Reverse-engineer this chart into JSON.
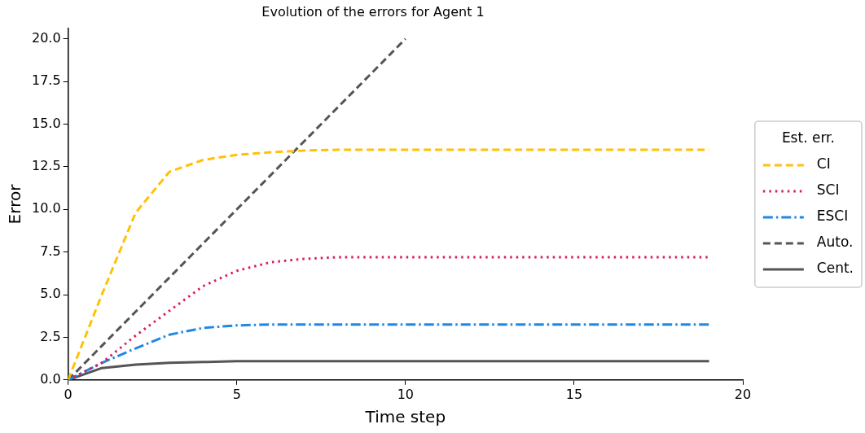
{
  "chart_data": {
    "type": "line",
    "title": "Evolution of the errors for Agent 1",
    "xlabel": "Time step",
    "ylabel": "Error",
    "legend_title": "Est. err.",
    "x": [
      0,
      1,
      2,
      3,
      4,
      5,
      6,
      7,
      8,
      9,
      10,
      11,
      12,
      13,
      14,
      15,
      16,
      17,
      18,
      19
    ],
    "series": [
      {
        "name": "CI",
        "color": "#ffc107",
        "line_style": "dashed",
        "values": [
          0,
          5.0,
          9.8,
          12.2,
          12.9,
          13.2,
          13.35,
          13.45,
          13.5,
          13.5,
          13.5,
          13.5,
          13.5,
          13.5,
          13.5,
          13.5,
          13.5,
          13.5,
          13.5,
          13.5
        ]
      },
      {
        "name": "SCI",
        "color": "#d81b60",
        "line_style": "dotted",
        "values": [
          0,
          1.0,
          2.6,
          4.05,
          5.5,
          6.4,
          6.9,
          7.1,
          7.2,
          7.2,
          7.2,
          7.2,
          7.2,
          7.2,
          7.2,
          7.2,
          7.2,
          7.2,
          7.2,
          7.2
        ]
      },
      {
        "name": "ESCI",
        "color": "#1e88e5",
        "line_style": "dashdot",
        "values": [
          0,
          1.0,
          1.85,
          2.65,
          3.05,
          3.2,
          3.25,
          3.25,
          3.25,
          3.25,
          3.25,
          3.25,
          3.25,
          3.25,
          3.25,
          3.25,
          3.25,
          3.25,
          3.25,
          3.25
        ]
      },
      {
        "name": "Auto.",
        "color": "#555555",
        "line_style": "dashed",
        "x": [
          0,
          1,
          2,
          3,
          4,
          5,
          6,
          7,
          8,
          9,
          10
        ],
        "values": [
          0,
          2,
          4,
          6,
          8,
          10,
          12,
          14,
          16,
          18,
          20
        ]
      },
      {
        "name": "Cent.",
        "color": "#555555",
        "line_style": "solid",
        "values": [
          0,
          0.7,
          0.9,
          1.0,
          1.05,
          1.1,
          1.1,
          1.1,
          1.1,
          1.1,
          1.1,
          1.1,
          1.1,
          1.1,
          1.1,
          1.1,
          1.1,
          1.1,
          1.1,
          1.1
        ]
      }
    ],
    "xlim": [
      0,
      20
    ],
    "xticks": [
      0,
      5,
      10,
      15,
      20
    ],
    "ylim": [
      0,
      20.6
    ],
    "yticks": [
      {
        "value": 0,
        "label": "0.0"
      },
      {
        "value": 2.5,
        "label": "2.5"
      },
      {
        "value": 5,
        "label": "5.0"
      },
      {
        "value": 7.5,
        "label": "7.5"
      },
      {
        "value": 10,
        "label": "10.0"
      },
      {
        "value": 12.5,
        "label": "12.5"
      },
      {
        "value": 15,
        "label": "15.0"
      },
      {
        "value": 17.5,
        "label": "17.5"
      },
      {
        "value": 20,
        "label": "20.0"
      }
    ],
    "grid": false,
    "legend": "right",
    "marker": "none"
  }
}
